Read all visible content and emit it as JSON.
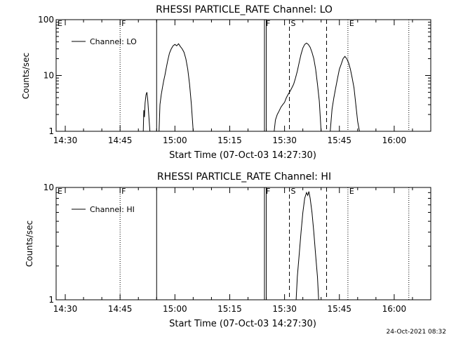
{
  "chart_data": [
    {
      "type": "line",
      "title": "RHESSI PARTICLE_RATE Channel: LO",
      "xlabel": "Start Time (07-Oct-03 14:27:30)",
      "ylabel": "Counts/sec",
      "yscale": "log",
      "xlim": [
        "14:27:30",
        "16:10:00"
      ],
      "ylim": [
        1,
        100
      ],
      "x_ticks": [
        "14:30",
        "14:45",
        "15:00",
        "15:15",
        "15:30",
        "15:45",
        "16:00"
      ],
      "y_ticks": [
        "1",
        "10",
        "100"
      ],
      "grid": false,
      "legend_position": "top-left",
      "series": [
        {
          "name": "Channel: LO",
          "color": "#000000",
          "points": [
            {
              "t": "14:51:20",
              "y": 1.0
            },
            {
              "t": "14:51:30",
              "y": 2.4
            },
            {
              "t": "14:51:40",
              "y": 1.8
            },
            {
              "t": "14:51:50",
              "y": 3.2
            },
            {
              "t": "14:52:05",
              "y": 4.5
            },
            {
              "t": "14:52:20",
              "y": 5.0
            },
            {
              "t": "14:52:35",
              "y": 3.5
            },
            {
              "t": "14:52:50",
              "y": 2.0
            },
            {
              "t": "14:53:10",
              "y": 1.0
            },
            {
              "t": "14:55:40",
              "y": 1.0
            },
            {
              "t": "14:55:55",
              "y": 3.0
            },
            {
              "t": "14:56:15",
              "y": 4.5
            },
            {
              "t": "14:56:35",
              "y": 6.0
            },
            {
              "t": "14:56:55",
              "y": 8.0
            },
            {
              "t": "14:57:15",
              "y": 10
            },
            {
              "t": "14:57:35",
              "y": 13
            },
            {
              "t": "14:58:00",
              "y": 18
            },
            {
              "t": "14:58:30",
              "y": 25
            },
            {
              "t": "14:59:00",
              "y": 30
            },
            {
              "t": "14:59:30",
              "y": 34
            },
            {
              "t": "15:00:00",
              "y": 36
            },
            {
              "t": "15:00:30",
              "y": 34
            },
            {
              "t": "15:01:00",
              "y": 37
            },
            {
              "t": "15:01:30",
              "y": 33
            },
            {
              "t": "15:02:00",
              "y": 30
            },
            {
              "t": "15:02:30",
              "y": 26
            },
            {
              "t": "15:03:00",
              "y": 20
            },
            {
              "t": "15:03:30",
              "y": 13
            },
            {
              "t": "15:04:00",
              "y": 7
            },
            {
              "t": "15:04:30",
              "y": 3
            },
            {
              "t": "15:05:00",
              "y": 1.0
            },
            {
              "t": "15:27:10",
              "y": 1.0
            },
            {
              "t": "15:27:30",
              "y": 1.6
            },
            {
              "t": "15:28:00",
              "y": 2.0
            },
            {
              "t": "15:28:30",
              "y": 2.3
            },
            {
              "t": "15:29:00",
              "y": 2.7
            },
            {
              "t": "15:29:30",
              "y": 3.0
            },
            {
              "t": "15:30:00",
              "y": 3.3
            },
            {
              "t": "15:30:30",
              "y": 4.0
            },
            {
              "t": "15:31:00",
              "y": 4.6
            },
            {
              "t": "15:31:30",
              "y": 5.2
            },
            {
              "t": "15:32:00",
              "y": 6.0
            },
            {
              "t": "15:32:30",
              "y": 7.0
            },
            {
              "t": "15:33:00",
              "y": 9.0
            },
            {
              "t": "15:33:30",
              "y": 12
            },
            {
              "t": "15:34:00",
              "y": 17
            },
            {
              "t": "15:34:30",
              "y": 24
            },
            {
              "t": "15:35:00",
              "y": 31
            },
            {
              "t": "15:35:30",
              "y": 36
            },
            {
              "t": "15:36:00",
              "y": 38
            },
            {
              "t": "15:36:30",
              "y": 36
            },
            {
              "t": "15:37:00",
              "y": 32
            },
            {
              "t": "15:37:30",
              "y": 26
            },
            {
              "t": "15:38:00",
              "y": 20
            },
            {
              "t": "15:38:30",
              "y": 13
            },
            {
              "t": "15:39:00",
              "y": 7
            },
            {
              "t": "15:39:30",
              "y": 3.5
            },
            {
              "t": "15:40:00",
              "y": 1.0
            },
            {
              "t": "15:42:30",
              "y": 1.0
            },
            {
              "t": "15:43:00",
              "y": 2.5
            },
            {
              "t": "15:43:30",
              "y": 4.0
            },
            {
              "t": "15:44:00",
              "y": 6.0
            },
            {
              "t": "15:44:30",
              "y": 9.0
            },
            {
              "t": "15:45:00",
              "y": 13
            },
            {
              "t": "15:45:30",
              "y": 16
            },
            {
              "t": "15:46:00",
              "y": 20
            },
            {
              "t": "15:46:30",
              "y": 22
            },
            {
              "t": "15:47:00",
              "y": 20
            },
            {
              "t": "15:47:30",
              "y": 17
            },
            {
              "t": "15:48:00",
              "y": 13
            },
            {
              "t": "15:48:30",
              "y": 9.0
            },
            {
              "t": "15:49:00",
              "y": 6.0
            },
            {
              "t": "15:49:30",
              "y": 3.0
            },
            {
              "t": "15:50:00",
              "y": 1.5
            },
            {
              "t": "15:50:30",
              "y": 1.0
            }
          ]
        }
      ],
      "markers": [
        {
          "label": "E",
          "t": "14:27:30",
          "style": "dotted"
        },
        {
          "label": "F",
          "t": "14:45:00",
          "style": "dotted"
        },
        {
          "label": "",
          "t": "14:55:00",
          "style": "solid"
        },
        {
          "label": "F",
          "t": "15:24:30",
          "style": "solid"
        },
        {
          "label": "",
          "t": "15:25:00",
          "style": "solid"
        },
        {
          "label": "S",
          "t": "15:31:20",
          "style": "dashed"
        },
        {
          "label": "",
          "t": "15:41:30",
          "style": "dashed"
        },
        {
          "label": "E",
          "t": "15:47:20",
          "style": "dotted"
        },
        {
          "label": "",
          "t": "16:04:00",
          "style": "dotted"
        }
      ]
    },
    {
      "type": "line",
      "title": "RHESSI PARTICLE_RATE Channel: HI",
      "xlabel": "Start Time (07-Oct-03 14:27:30)",
      "ylabel": "Counts/sec",
      "yscale": "log",
      "xlim": [
        "14:27:30",
        "16:10:00"
      ],
      "ylim": [
        1,
        10
      ],
      "x_ticks": [
        "14:30",
        "14:45",
        "15:00",
        "15:15",
        "15:30",
        "15:45",
        "16:00"
      ],
      "y_ticks": [
        "1",
        "10"
      ],
      "grid": false,
      "legend_position": "top-left",
      "series": [
        {
          "name": "Channel: HI",
          "color": "#000000",
          "points": [
            {
              "t": "15:33:10",
              "y": 1.0
            },
            {
              "t": "15:33:30",
              "y": 1.6
            },
            {
              "t": "15:34:00",
              "y": 2.5
            },
            {
              "t": "15:34:30",
              "y": 4.0
            },
            {
              "t": "15:35:00",
              "y": 6.0
            },
            {
              "t": "15:35:30",
              "y": 8.0
            },
            {
              "t": "15:36:00",
              "y": 9.0
            },
            {
              "t": "15:36:20",
              "y": 8.5
            },
            {
              "t": "15:36:40",
              "y": 9.2
            },
            {
              "t": "15:37:00",
              "y": 8.0
            },
            {
              "t": "15:37:30",
              "y": 6.0
            },
            {
              "t": "15:38:00",
              "y": 4.0
            },
            {
              "t": "15:38:30",
              "y": 2.5
            },
            {
              "t": "15:39:00",
              "y": 1.6
            },
            {
              "t": "15:39:20",
              "y": 1.0
            }
          ]
        }
      ],
      "markers": [
        {
          "label": "E",
          "t": "14:27:30",
          "style": "dotted"
        },
        {
          "label": "F",
          "t": "14:45:00",
          "style": "dotted"
        },
        {
          "label": "",
          "t": "14:55:00",
          "style": "solid"
        },
        {
          "label": "F",
          "t": "15:24:30",
          "style": "solid"
        },
        {
          "label": "",
          "t": "15:25:00",
          "style": "solid"
        },
        {
          "label": "S",
          "t": "15:31:20",
          "style": "dashed"
        },
        {
          "label": "",
          "t": "15:41:30",
          "style": "dashed"
        },
        {
          "label": "E",
          "t": "15:47:20",
          "style": "dotted"
        },
        {
          "label": "",
          "t": "16:04:00",
          "style": "dotted"
        }
      ]
    }
  ],
  "footer": {
    "timestamp": "24-Oct-2021 08:32"
  }
}
